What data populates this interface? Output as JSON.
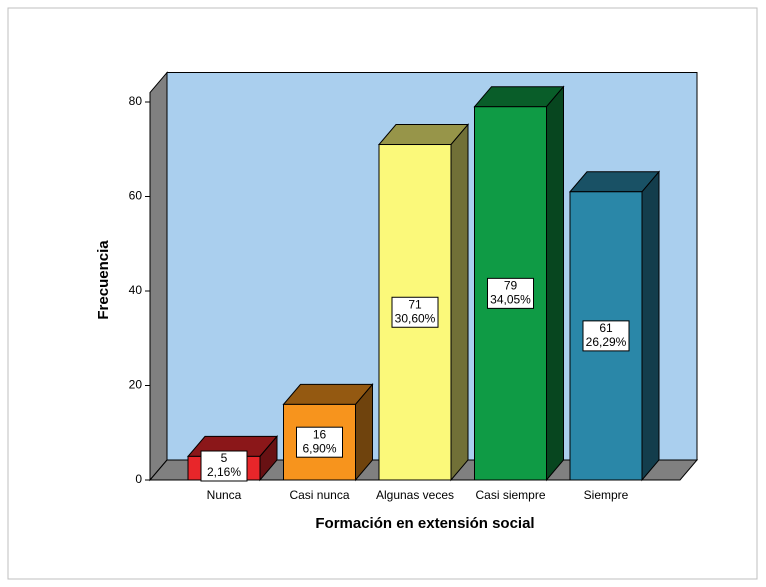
{
  "chart_data": {
    "type": "bar3d",
    "x_label": "Formación en extensión social",
    "y_label": "Frecuencia",
    "categories": [
      "Nunca",
      "Casi nunca",
      "Algunas veces",
      "Casi siempre",
      "Siempre"
    ],
    "values": [
      5,
      16,
      71,
      79,
      61
    ],
    "percent_labels": [
      "2,16%",
      "6,90%",
      "30,60%",
      "34,05%",
      "26,29%"
    ],
    "colors": [
      "#e8262a",
      "#f7941d",
      "#fbf97a",
      "#0f9b45",
      "#2a87a8"
    ],
    "ylim": [
      0,
      82
    ],
    "yticks": [
      0,
      20,
      40,
      60,
      80
    ]
  }
}
